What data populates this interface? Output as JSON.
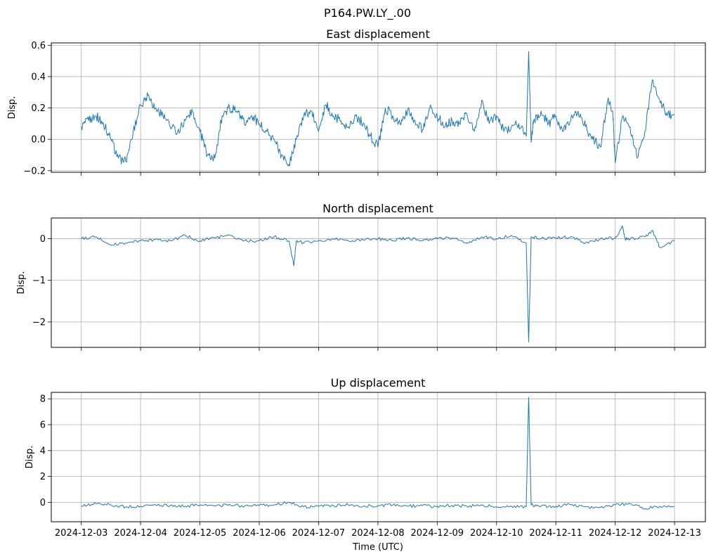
{
  "figure": {
    "suptitle": "P164.PW.LY_.00",
    "xlabel": "Time (UTC)",
    "line_color": "#1f77b4",
    "grid_color": "#b0b0b0"
  },
  "chart_data": [
    {
      "type": "line",
      "title": "East displacement",
      "xlabel": "",
      "ylabel": "Disp.",
      "xlim": [
        "2024-12-02T11:52",
        "2024-12-13T12:29"
      ],
      "ylim": [
        -0.21,
        0.615
      ],
      "yticks": [
        -0.2,
        0.0,
        0.2,
        0.4,
        0.6
      ],
      "ytick_labels": [
        "−0.2",
        "0.0",
        "0.2",
        "0.4",
        "0.6"
      ],
      "xticks": [
        "2024-12-03",
        "2024-12-04",
        "2024-12-05",
        "2024-12-06",
        "2024-12-07",
        "2024-12-08",
        "2024-12-09",
        "2024-12-10",
        "2024-12-11",
        "2024-12-12",
        "2024-12-13"
      ],
      "xtick_labels": [],
      "grid": true,
      "series": [
        {
          "x": [
            "2024-12-03T00:00",
            "2024-12-03T03:00",
            "2024-12-03T06:00",
            "2024-12-03T09:00",
            "2024-12-03T12:00",
            "2024-12-03T15:00",
            "2024-12-03T18:00",
            "2024-12-03T21:00",
            "2024-12-04T00:00",
            "2024-12-04T03:00",
            "2024-12-04T06:00",
            "2024-12-04T09:00",
            "2024-12-04T12:00",
            "2024-12-04T15:00",
            "2024-12-04T18:00",
            "2024-12-04T21:00",
            "2024-12-05T00:00",
            "2024-12-05T03:00",
            "2024-12-05T06:00",
            "2024-12-05T09:00",
            "2024-12-05T12:00",
            "2024-12-05T15:00",
            "2024-12-05T18:00",
            "2024-12-05T21:00",
            "2024-12-06T00:00",
            "2024-12-06T03:00",
            "2024-12-06T06:00",
            "2024-12-06T09:00",
            "2024-12-06T12:00",
            "2024-12-06T15:00",
            "2024-12-06T18:00",
            "2024-12-06T21:00",
            "2024-12-07T00:00",
            "2024-12-07T03:00",
            "2024-12-07T06:00",
            "2024-12-07T09:00",
            "2024-12-07T12:00",
            "2024-12-07T15:00",
            "2024-12-07T18:00",
            "2024-12-07T21:00",
            "2024-12-08T00:00",
            "2024-12-08T03:00",
            "2024-12-08T06:00",
            "2024-12-08T09:00",
            "2024-12-08T12:00",
            "2024-12-08T15:00",
            "2024-12-08T18:00",
            "2024-12-08T21:00",
            "2024-12-09T00:00",
            "2024-12-09T03:00",
            "2024-12-09T06:00",
            "2024-12-09T09:00",
            "2024-12-09T12:00",
            "2024-12-09T15:00",
            "2024-12-09T18:00",
            "2024-12-09T21:00",
            "2024-12-10T00:00",
            "2024-12-10T03:00",
            "2024-12-10T06:00",
            "2024-12-10T09:00",
            "2024-12-10T12:00",
            "2024-12-10T13:00",
            "2024-12-10T14:00",
            "2024-12-10T15:00",
            "2024-12-10T18:00",
            "2024-12-10T21:00",
            "2024-12-11T00:00",
            "2024-12-11T03:00",
            "2024-12-11T06:00",
            "2024-12-11T09:00",
            "2024-12-11T12:00",
            "2024-12-11T15:00",
            "2024-12-11T18:00",
            "2024-12-11T21:00",
            "2024-12-11T23:00",
            "2024-12-12T00:00",
            "2024-12-12T03:00",
            "2024-12-12T06:00",
            "2024-12-12T09:00",
            "2024-12-12T12:00",
            "2024-12-12T15:00",
            "2024-12-12T18:00",
            "2024-12-12T21:00",
            "2024-12-13T00:00"
          ],
          "values": [
            0.08,
            0.12,
            0.15,
            0.1,
            0.0,
            -0.12,
            -0.14,
            0.05,
            0.22,
            0.28,
            0.2,
            0.15,
            0.08,
            0.05,
            0.12,
            0.18,
            0.05,
            -0.1,
            -0.12,
            0.15,
            0.2,
            0.18,
            0.1,
            0.15,
            0.1,
            0.05,
            0.0,
            -0.1,
            -0.16,
            0.0,
            0.15,
            0.18,
            0.05,
            0.22,
            0.15,
            0.12,
            0.08,
            0.15,
            0.1,
            0.02,
            -0.05,
            0.2,
            0.15,
            0.1,
            0.18,
            0.12,
            0.06,
            0.2,
            0.15,
            0.08,
            0.12,
            0.1,
            0.16,
            0.05,
            0.25,
            0.1,
            0.15,
            0.05,
            0.08,
            0.1,
            0.02,
            0.56,
            -0.02,
            0.12,
            0.18,
            0.1,
            0.15,
            0.05,
            0.12,
            0.18,
            0.08,
            0.0,
            -0.05,
            0.25,
            0.18,
            -0.15,
            0.15,
            0.08,
            -0.12,
            0.05,
            0.38,
            0.25,
            0.15,
            0.16
          ]
        }
      ]
    },
    {
      "type": "line",
      "title": "North displacement",
      "xlabel": "",
      "ylabel": "Disp.",
      "xlim": [
        "2024-12-02T11:52",
        "2024-12-13T12:29"
      ],
      "ylim": [
        -2.61,
        0.5
      ],
      "yticks": [
        -2,
        -1,
        0
      ],
      "ytick_labels": [
        "−2",
        "−1",
        "0"
      ],
      "xticks": [
        "2024-12-03",
        "2024-12-04",
        "2024-12-05",
        "2024-12-06",
        "2024-12-07",
        "2024-12-08",
        "2024-12-09",
        "2024-12-10",
        "2024-12-11",
        "2024-12-12",
        "2024-12-13"
      ],
      "xtick_labels": [],
      "grid": true,
      "series": [
        {
          "x": [
            "2024-12-03T00:00",
            "2024-12-03T06:00",
            "2024-12-03T12:00",
            "2024-12-03T18:00",
            "2024-12-04T00:00",
            "2024-12-04T06:00",
            "2024-12-04T12:00",
            "2024-12-04T18:00",
            "2024-12-05T00:00",
            "2024-12-05T06:00",
            "2024-12-05T12:00",
            "2024-12-05T18:00",
            "2024-12-06T00:00",
            "2024-12-06T06:00",
            "2024-12-06T12:00",
            "2024-12-06T14:00",
            "2024-12-06T15:00",
            "2024-12-06T18:00",
            "2024-12-07T00:00",
            "2024-12-07T06:00",
            "2024-12-07T12:00",
            "2024-12-07T18:00",
            "2024-12-08T00:00",
            "2024-12-08T06:00",
            "2024-12-08T12:00",
            "2024-12-08T18:00",
            "2024-12-09T00:00",
            "2024-12-09T06:00",
            "2024-12-09T12:00",
            "2024-12-09T18:00",
            "2024-12-10T00:00",
            "2024-12-10T06:00",
            "2024-12-10T12:00",
            "2024-12-10T13:00",
            "2024-12-10T14:00",
            "2024-12-10T18:00",
            "2024-12-11T00:00",
            "2024-12-11T06:00",
            "2024-12-11T12:00",
            "2024-12-11T18:00",
            "2024-12-12T00:00",
            "2024-12-12T03:00",
            "2024-12-12T04:00",
            "2024-12-12T06:00",
            "2024-12-12T12:00",
            "2024-12-12T15:00",
            "2024-12-12T18:00",
            "2024-12-13T00:00"
          ],
          "values": [
            0.0,
            0.05,
            -0.15,
            -0.1,
            -0.05,
            -0.02,
            -0.05,
            0.08,
            -0.05,
            0.02,
            0.08,
            -0.05,
            -0.05,
            0.05,
            -0.05,
            -0.65,
            -0.05,
            -0.1,
            -0.05,
            0.0,
            -0.05,
            -0.02,
            0.0,
            -0.05,
            0.02,
            -0.05,
            0.0,
            0.02,
            -0.1,
            0.05,
            0.0,
            0.08,
            -0.1,
            -2.48,
            0.05,
            0.0,
            0.02,
            0.05,
            -0.1,
            0.0,
            0.02,
            0.3,
            0.0,
            0.0,
            0.05,
            0.2,
            -0.2,
            -0.05
          ]
        }
      ]
    },
    {
      "type": "line",
      "title": "Up displacement",
      "xlabel": "Time (UTC)",
      "ylabel": "Disp.",
      "xlim": [
        "2024-12-02T11:52",
        "2024-12-13T12:29"
      ],
      "ylim": [
        -1.5,
        8.5
      ],
      "yticks": [
        0,
        2,
        4,
        6,
        8
      ],
      "ytick_labels": [
        "0",
        "2",
        "4",
        "6",
        "8"
      ],
      "xticks": [
        "2024-12-03",
        "2024-12-04",
        "2024-12-05",
        "2024-12-06",
        "2024-12-07",
        "2024-12-08",
        "2024-12-09",
        "2024-12-10",
        "2024-12-11",
        "2024-12-12",
        "2024-12-13"
      ],
      "xtick_labels": [
        "2024-12-03",
        "2024-12-04",
        "2024-12-05",
        "2024-12-06",
        "2024-12-07",
        "2024-12-08",
        "2024-12-09",
        "2024-12-10",
        "2024-12-11",
        "2024-12-12",
        "2024-12-13"
      ],
      "grid": true,
      "series": [
        {
          "x": [
            "2024-12-03T00:00",
            "2024-12-03T06:00",
            "2024-12-03T12:00",
            "2024-12-03T18:00",
            "2024-12-04T00:00",
            "2024-12-04T06:00",
            "2024-12-04T12:00",
            "2024-12-04T18:00",
            "2024-12-05T00:00",
            "2024-12-05T06:00",
            "2024-12-05T12:00",
            "2024-12-05T18:00",
            "2024-12-06T00:00",
            "2024-12-06T06:00",
            "2024-12-06T12:00",
            "2024-12-06T18:00",
            "2024-12-07T00:00",
            "2024-12-07T06:00",
            "2024-12-07T12:00",
            "2024-12-07T18:00",
            "2024-12-08T00:00",
            "2024-12-08T06:00",
            "2024-12-08T12:00",
            "2024-12-08T18:00",
            "2024-12-09T00:00",
            "2024-12-09T06:00",
            "2024-12-09T12:00",
            "2024-12-09T18:00",
            "2024-12-10T00:00",
            "2024-12-10T06:00",
            "2024-12-10T12:00",
            "2024-12-10T13:00",
            "2024-12-10T14:00",
            "2024-12-10T18:00",
            "2024-12-11T00:00",
            "2024-12-11T06:00",
            "2024-12-11T12:00",
            "2024-12-11T18:00",
            "2024-12-12T00:00",
            "2024-12-12T06:00",
            "2024-12-12T12:00",
            "2024-12-12T18:00",
            "2024-12-13T00:00"
          ],
          "values": [
            -0.3,
            -0.1,
            -0.2,
            -0.35,
            -0.3,
            -0.2,
            -0.25,
            -0.3,
            -0.2,
            -0.3,
            -0.15,
            -0.3,
            -0.25,
            -0.2,
            0.0,
            -0.35,
            -0.3,
            -0.25,
            -0.2,
            -0.3,
            -0.25,
            -0.2,
            -0.3,
            -0.25,
            -0.3,
            -0.25,
            -0.3,
            -0.2,
            -0.35,
            -0.3,
            -0.35,
            8.1,
            -0.2,
            -0.3,
            -0.3,
            -0.2,
            -0.35,
            -0.4,
            -0.2,
            -0.1,
            -0.5,
            -0.3,
            -0.3
          ]
        }
      ]
    }
  ]
}
